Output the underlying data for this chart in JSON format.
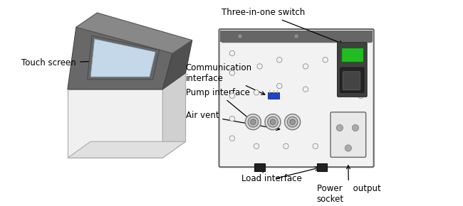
{
  "bg_color": "#ffffff",
  "labels": {
    "touch_screen": "Touch screen",
    "three_in_one": "Three-in-one switch",
    "comm_interface": "Communication\ninterface",
    "pump_interface": "Pump interface",
    "air_vent": "Air vent",
    "load_interface": "Load interface",
    "power_socket": "Power    output\nsocket"
  },
  "figsize": [
    6.5,
    2.9
  ],
  "dpi": 100
}
